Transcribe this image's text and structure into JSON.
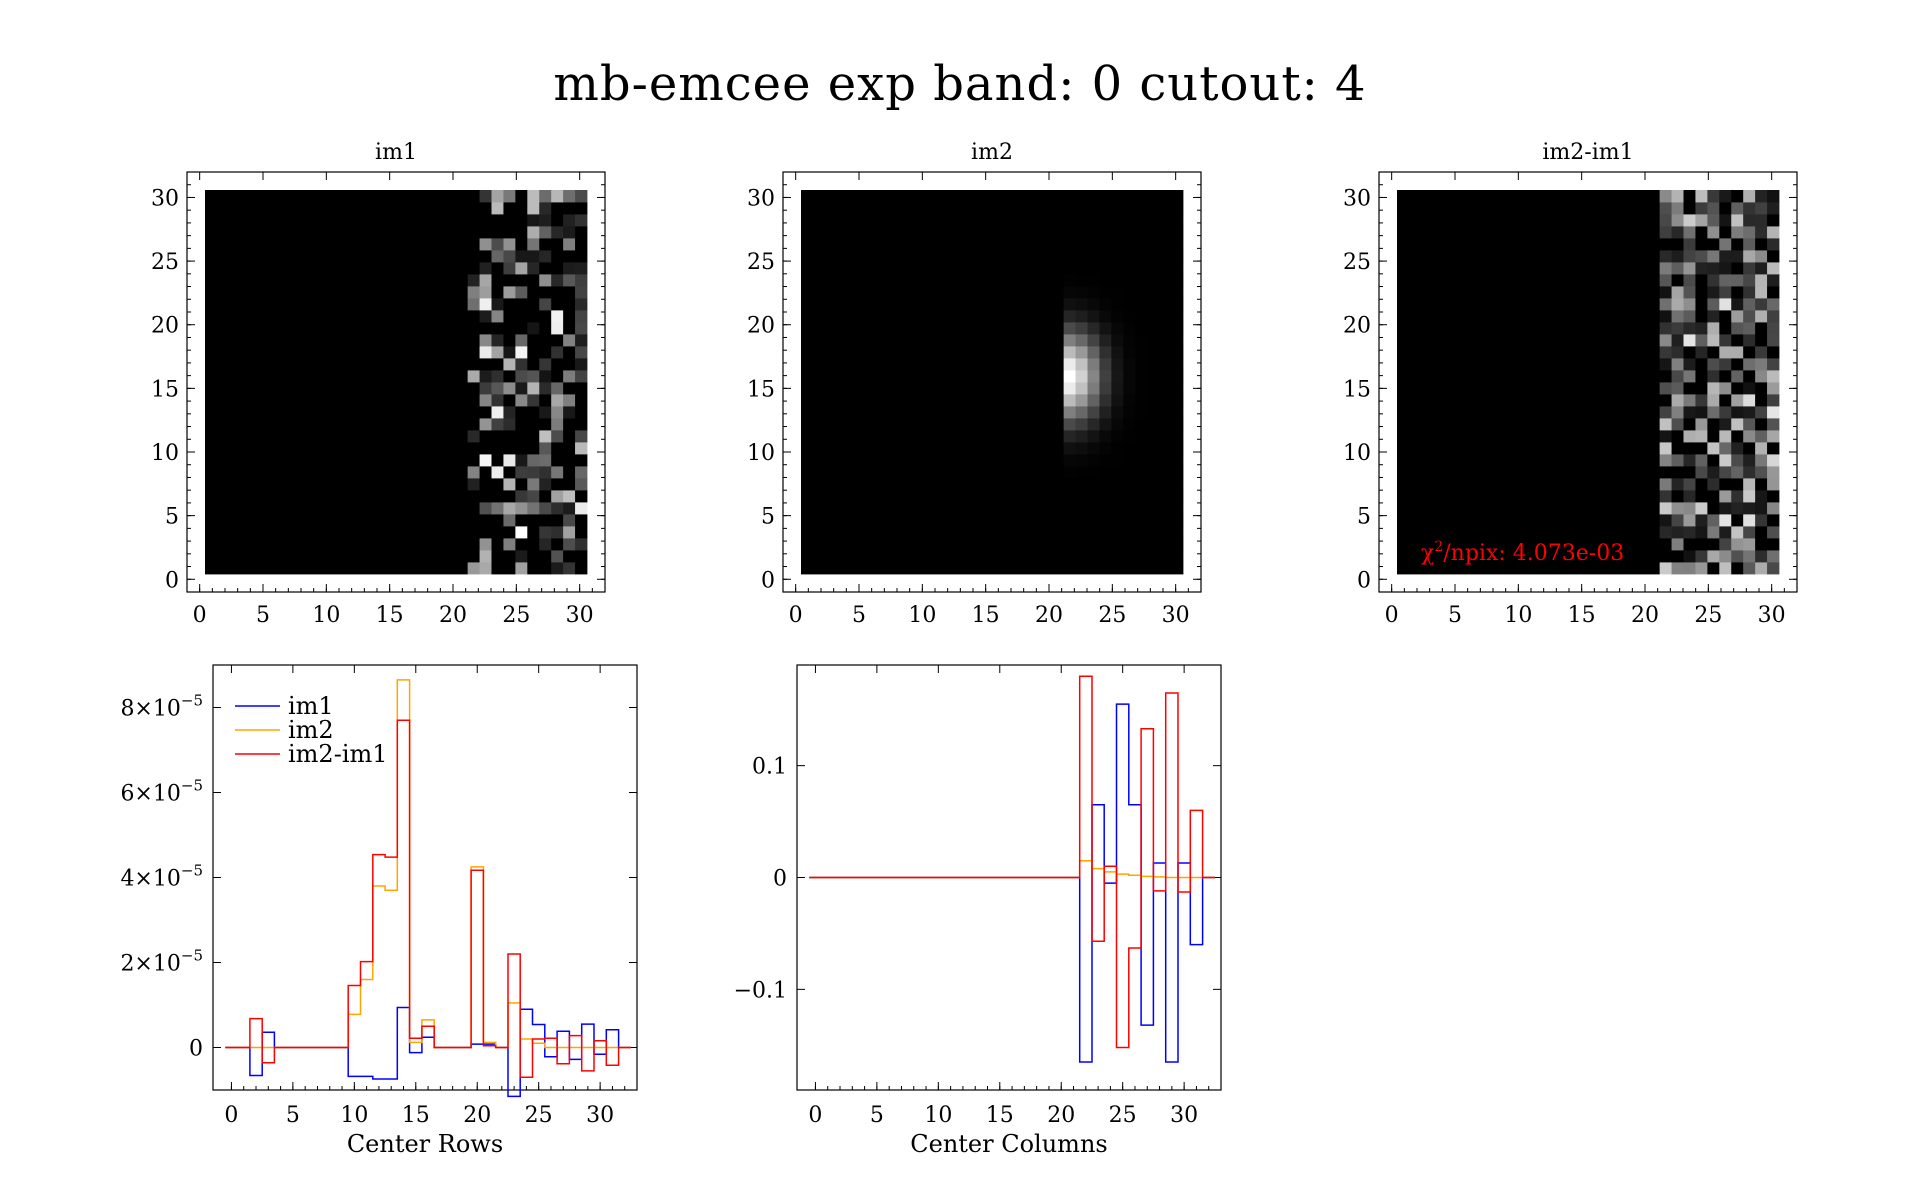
{
  "figure": {
    "suptitle": "mb-emcee exp band: 0 cutout: 4"
  },
  "chart_data": [
    {
      "type": "heatmap",
      "title": "im1",
      "xlim": [
        -1,
        32
      ],
      "ylim": [
        -1,
        32
      ],
      "xticks": [
        "0",
        "5",
        "10",
        "15",
        "20",
        "25",
        "30"
      ],
      "yticks": [
        "0",
        "5",
        "10",
        "15",
        "20",
        "25",
        "30"
      ],
      "colormap": "grayscale",
      "description_values": "nonzero noise only in columns 22-31"
    },
    {
      "type": "heatmap",
      "title": "im2",
      "xlim": [
        -1,
        32
      ],
      "ylim": [
        -1,
        32
      ],
      "xticks": [
        "0",
        "5",
        "10",
        "15",
        "20",
        "25",
        "30"
      ],
      "yticks": [
        "0",
        "5",
        "10",
        "15",
        "20",
        "25",
        "30"
      ],
      "colormap": "grayscale",
      "peak": {
        "x": 22,
        "y": 16
      }
    },
    {
      "type": "heatmap",
      "title": "im2-im1",
      "xlim": [
        -1,
        32
      ],
      "ylim": [
        -1,
        32
      ],
      "xticks": [
        "0",
        "5",
        "10",
        "15",
        "20",
        "25",
        "30"
      ],
      "yticks": [
        "0",
        "5",
        "10",
        "15",
        "20",
        "25",
        "30"
      ],
      "colormap": "grayscale",
      "annotation": {
        "prefix": "χ",
        "sup": "2",
        "text": "/npix: 4.073e-03",
        "color": "#ff0000"
      }
    },
    {
      "type": "line",
      "xlabel": "Center Rows",
      "xlim": [
        -1.5,
        33
      ],
      "ylim": [
        -1e-05,
        9e-05
      ],
      "xticks": [
        "0",
        "5",
        "10",
        "15",
        "20",
        "25",
        "30"
      ],
      "yticks": [
        {
          "value": 0,
          "mant": "0",
          "exp": ""
        },
        {
          "value": 2e-05,
          "mant": "2×10",
          "exp": "−5"
        },
        {
          "value": 4e-05,
          "mant": "4×10",
          "exp": "−5"
        },
        {
          "value": 6e-05,
          "mant": "6×10",
          "exp": "−5"
        },
        {
          "value": 8e-05,
          "mant": "8×10",
          "exp": "−5"
        }
      ],
      "legend": "top-left",
      "series": [
        {
          "name": "im1",
          "color": "#0000ff",
          "x": [
            0,
            1,
            2,
            3,
            4,
            5,
            6,
            7,
            8,
            9,
            10,
            11,
            12,
            13,
            14,
            15,
            16,
            17,
            18,
            19,
            20,
            21,
            22,
            23,
            24,
            25,
            26,
            27,
            28,
            29,
            30,
            31,
            32
          ],
          "values": [
            0,
            0,
            -6.6e-06,
            3.6e-06,
            0,
            0,
            0,
            0,
            0,
            0,
            -6.8e-06,
            -6.8e-06,
            -7.4e-06,
            -7.4e-06,
            9.4e-06,
            -1.2e-06,
            2.4e-06,
            0,
            0,
            0,
            8e-07,
            8e-07,
            0,
            -1.15e-05,
            9e-06,
            5.4e-06,
            -2.2e-06,
            3.8e-06,
            -2.8e-06,
            5.5e-06,
            -1.6e-06,
            4.2e-06,
            0
          ]
        },
        {
          "name": "im2",
          "color": "#ffa500",
          "x": [
            0,
            1,
            2,
            3,
            4,
            5,
            6,
            7,
            8,
            9,
            10,
            11,
            12,
            13,
            14,
            15,
            16,
            17,
            18,
            19,
            20,
            21,
            22,
            23,
            24,
            25,
            26,
            27,
            28,
            29,
            30,
            31,
            32
          ],
          "values": [
            0,
            0,
            0,
            0,
            0,
            0,
            0,
            0,
            0,
            0,
            7.8e-06,
            1.6e-05,
            3.8e-05,
            3.7e-05,
            8.65e-05,
            1.2e-06,
            6.5e-06,
            0,
            0,
            0,
            4.25e-05,
            1.2e-06,
            0,
            1.05e-05,
            2e-06,
            1e-06,
            0,
            0,
            0,
            0,
            0,
            0,
            0
          ]
        },
        {
          "name": "im2-im1",
          "color": "#ff0000",
          "x": [
            0,
            1,
            2,
            3,
            4,
            5,
            6,
            7,
            8,
            9,
            10,
            11,
            12,
            13,
            14,
            15,
            16,
            17,
            18,
            19,
            20,
            21,
            22,
            23,
            24,
            25,
            26,
            27,
            28,
            29,
            30,
            31,
            32
          ],
          "values": [
            0,
            0,
            6.8e-06,
            -3.6e-06,
            0,
            0,
            0,
            0,
            0,
            0,
            1.46e-05,
            2.02e-05,
            4.54e-05,
            4.48e-05,
            7.7e-05,
            2.2e-06,
            5e-06,
            0,
            0,
            0,
            4.17e-05,
            4e-07,
            0,
            2.2e-05,
            -7e-06,
            2e-06,
            2.2e-06,
            -3.8e-06,
            2.8e-06,
            -5.5e-06,
            1.6e-06,
            -4.2e-06,
            0
          ]
        }
      ]
    },
    {
      "type": "line",
      "xlabel": "Center Columns",
      "xlim": [
        -1.5,
        33
      ],
      "ylim": [
        -0.19,
        0.19
      ],
      "xticks": [
        "0",
        "5",
        "10",
        "15",
        "20",
        "25",
        "30"
      ],
      "yticks": [
        {
          "value": -0.1,
          "mant": "−0.1",
          "exp": ""
        },
        {
          "value": 0,
          "mant": "0",
          "exp": ""
        },
        {
          "value": 0.1,
          "mant": "0.1",
          "exp": ""
        }
      ],
      "series": [
        {
          "name": "im1",
          "color": "#0000ff",
          "x": [
            0,
            1,
            2,
            3,
            4,
            5,
            6,
            7,
            8,
            9,
            10,
            11,
            12,
            13,
            14,
            15,
            16,
            17,
            18,
            19,
            20,
            21,
            22,
            23,
            24,
            25,
            26,
            27,
            28,
            29,
            30,
            31,
            32
          ],
          "values": [
            0,
            0,
            0,
            0,
            0,
            0,
            0,
            0,
            0,
            0,
            0,
            0,
            0,
            0,
            0,
            0,
            0,
            0,
            0,
            0,
            0,
            0,
            -0.165,
            0.065,
            -0.005,
            0.155,
            0.065,
            -0.132,
            0.013,
            -0.165,
            0.013,
            -0.06,
            0
          ]
        },
        {
          "name": "im2",
          "color": "#ffa500",
          "x": [
            0,
            1,
            2,
            3,
            4,
            5,
            6,
            7,
            8,
            9,
            10,
            11,
            12,
            13,
            14,
            15,
            16,
            17,
            18,
            19,
            20,
            21,
            22,
            23,
            24,
            25,
            26,
            27,
            28,
            29,
            30,
            31,
            32
          ],
          "values": [
            0,
            0,
            0,
            0,
            0,
            0,
            0,
            0,
            0,
            0,
            0,
            0,
            0,
            0,
            0,
            0,
            0,
            0,
            0,
            0,
            0,
            0,
            0.015,
            0.008,
            0.005,
            0.003,
            0.002,
            0.001,
            0.0005,
            0,
            0,
            0,
            0
          ]
        },
        {
          "name": "im2-im1",
          "color": "#ff0000",
          "x": [
            0,
            1,
            2,
            3,
            4,
            5,
            6,
            7,
            8,
            9,
            10,
            11,
            12,
            13,
            14,
            15,
            16,
            17,
            18,
            19,
            20,
            21,
            22,
            23,
            24,
            25,
            26,
            27,
            28,
            29,
            30,
            31,
            32
          ],
          "values": [
            0,
            0,
            0,
            0,
            0,
            0,
            0,
            0,
            0,
            0,
            0,
            0,
            0,
            0,
            0,
            0,
            0,
            0,
            0,
            0,
            0,
            0,
            0.18,
            -0.057,
            0.01,
            -0.152,
            -0.063,
            0.133,
            -0.012,
            0.165,
            -0.013,
            0.06,
            0
          ]
        }
      ]
    }
  ]
}
